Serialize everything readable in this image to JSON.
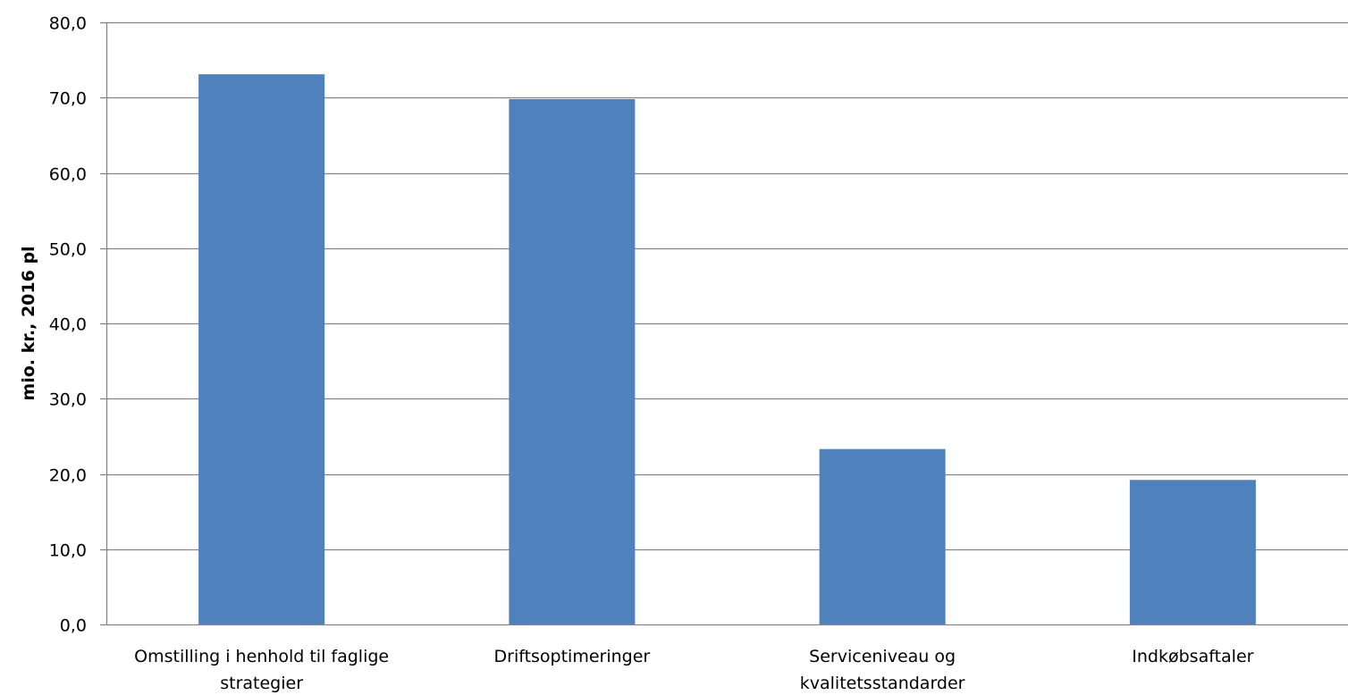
{
  "chart_data": {
    "type": "bar",
    "categories": [
      [
        "Omstilling i henhold til faglige",
        "strategier"
      ],
      [
        "Driftsoptimeringer"
      ],
      [
        "Serviceniveau og",
        "kvalitetsstandarder"
      ],
      [
        "Indkøbsaftaler"
      ]
    ],
    "values": [
      73.1,
      69.8,
      23.3,
      19.2
    ],
    "title": "",
    "xlabel": "",
    "ylabel": "mio. kr., 2016 pl",
    "ylim": [
      0,
      80
    ],
    "yticks": [
      0,
      10,
      20,
      30,
      40,
      50,
      60,
      70,
      80
    ],
    "ytick_labels": [
      "0,0",
      "10,0",
      "20,0",
      "30,0",
      "40,0",
      "50,0",
      "60,0",
      "70,0",
      "80,0"
    ],
    "grid": true,
    "legend": "none",
    "bar_color": "#4f81bd",
    "grid_color": "#868686",
    "axis_color": "#868686"
  }
}
